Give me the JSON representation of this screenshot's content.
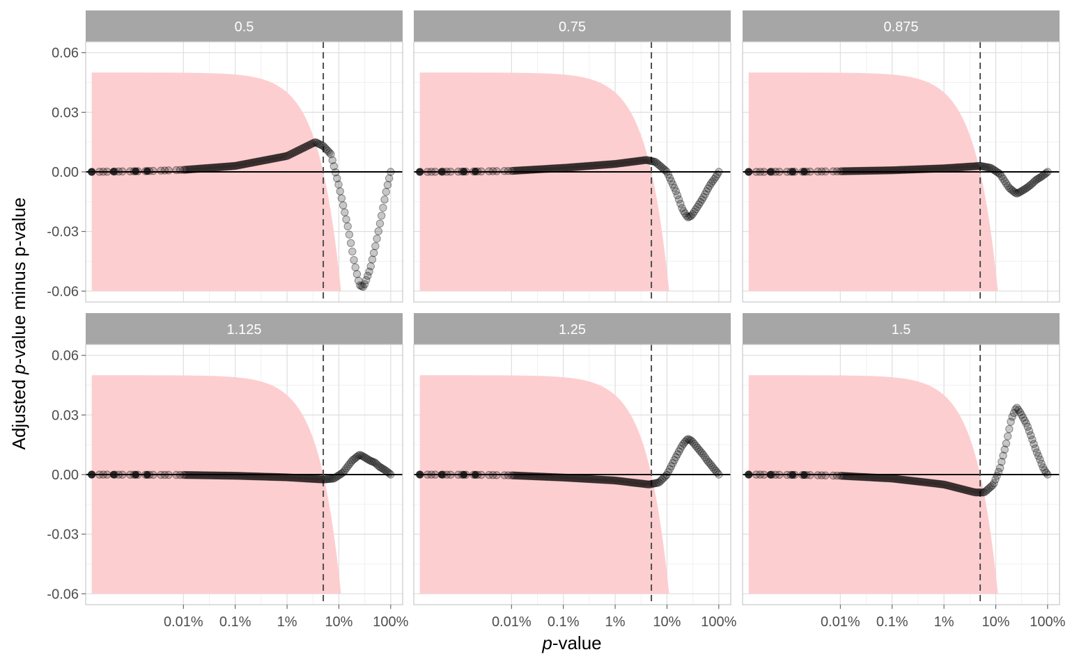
{
  "chart_data": {
    "type": "scatter",
    "facet_by": "exponent",
    "facets": [
      "0.5",
      "0.75",
      "0.875",
      "1.125",
      "1.25",
      "1.5"
    ],
    "xlabel_prefix": "p",
    "xlabel_suffix": "-value",
    "ylabel_prefix": "Adjusted ",
    "ylabel_italic": "p",
    "ylabel_suffix": "-value minus p-value",
    "x_scale": "log10",
    "x_ticks": [
      0.0001,
      0.001,
      0.01,
      0.1,
      1
    ],
    "x_tick_labels": [
      "0.01%",
      "0.1%",
      "1%",
      "10%",
      "100%"
    ],
    "xlim": [
      1.3e-06,
      1.7
    ],
    "y_ticks": [
      -0.06,
      -0.03,
      0.0,
      0.03,
      0.06
    ],
    "y_tick_labels": [
      "-0.06",
      "-0.03",
      "0.00",
      "0.03",
      "0.06"
    ],
    "ylim": [
      -0.0655,
      0.0655
    ],
    "reference_hline": 0,
    "reference_vline": 0.05,
    "ribbon": {
      "color": "#fdcbcd",
      "lower": -0.06,
      "upper_formula": "min(0.05, 0.05 - p + 0.0)",
      "x_from": 1.7e-06,
      "x_to": 0.11
    },
    "point_color": "#000000",
    "point_alpha": 0.22,
    "series": [
      {
        "name": "0.5",
        "x": [
          1.7e-06,
          2e-05,
          0.0001,
          0.001,
          0.01,
          0.035,
          0.05,
          0.07,
          0.1,
          0.15,
          0.2,
          0.25,
          0.3,
          0.4,
          0.5,
          0.6,
          0.7,
          0.8,
          0.9,
          1.0
        ],
        "y": [
          0.0,
          0.0004,
          0.001,
          0.003,
          0.008,
          0.015,
          0.013,
          0.009,
          -0.007,
          -0.028,
          -0.046,
          -0.057,
          -0.058,
          -0.049,
          -0.038,
          -0.028,
          -0.019,
          -0.011,
          -0.005,
          0.0
        ]
      },
      {
        "name": "0.75",
        "x": [
          1.7e-06,
          2e-05,
          0.0001,
          0.001,
          0.01,
          0.04,
          0.06,
          0.1,
          0.15,
          0.2,
          0.25,
          0.3,
          0.4,
          0.5,
          0.6,
          0.7,
          0.8,
          0.9,
          1.0
        ],
        "y": [
          0.0,
          0.0002,
          0.0005,
          0.002,
          0.004,
          0.006,
          0.005,
          0.0,
          -0.01,
          -0.019,
          -0.023,
          -0.022,
          -0.017,
          -0.013,
          -0.009,
          -0.006,
          -0.004,
          -0.002,
          0.0
        ]
      },
      {
        "name": "0.875",
        "x": [
          1.7e-06,
          2e-05,
          0.0001,
          0.001,
          0.01,
          0.05,
          0.08,
          0.12,
          0.18,
          0.25,
          0.3,
          0.4,
          0.5,
          0.6,
          0.7,
          0.8,
          0.9,
          1.0
        ],
        "y": [
          0.0,
          0.0001,
          0.0003,
          0.0008,
          0.0018,
          0.003,
          0.002,
          -0.001,
          -0.008,
          -0.011,
          -0.01,
          -0.008,
          -0.006,
          -0.004,
          -0.003,
          -0.002,
          -0.001,
          0.0
        ]
      },
      {
        "name": "1.125",
        "x": [
          1.7e-06,
          2e-05,
          0.0001,
          0.001,
          0.01,
          0.05,
          0.08,
          0.12,
          0.18,
          0.25,
          0.3,
          0.4,
          0.5,
          0.6,
          0.7,
          0.8,
          0.9,
          1.0
        ],
        "y": [
          0.0,
          -0.0001,
          -0.0002,
          -0.0006,
          -0.0014,
          -0.0025,
          -0.002,
          0.001,
          0.007,
          0.01,
          0.009,
          0.007,
          0.006,
          0.004,
          0.003,
          0.002,
          0.001,
          0.0
        ]
      },
      {
        "name": "1.25",
        "x": [
          1.7e-06,
          2e-05,
          0.0001,
          0.001,
          0.01,
          0.045,
          0.07,
          0.1,
          0.15,
          0.2,
          0.25,
          0.3,
          0.4,
          0.5,
          0.6,
          0.7,
          0.8,
          0.9,
          1.0
        ],
        "y": [
          0.0,
          -0.0001,
          -0.0004,
          -0.0015,
          -0.003,
          -0.005,
          -0.004,
          0.0,
          0.009,
          0.015,
          0.018,
          0.017,
          0.013,
          0.01,
          0.007,
          0.005,
          0.003,
          0.0015,
          0.0
        ]
      },
      {
        "name": "1.5",
        "x": [
          1.7e-06,
          2e-05,
          0.0001,
          0.001,
          0.01,
          0.04,
          0.06,
          0.09,
          0.12,
          0.16,
          0.2,
          0.25,
          0.3,
          0.4,
          0.5,
          0.6,
          0.7,
          0.8,
          0.9,
          1.0
        ],
        "y": [
          0.0,
          -0.0002,
          -0.0006,
          -0.002,
          -0.005,
          -0.009,
          -0.009,
          -0.005,
          0.003,
          0.016,
          0.028,
          0.034,
          0.031,
          0.025,
          0.018,
          0.012,
          0.008,
          0.004,
          0.0015,
          0.0
        ]
      }
    ]
  }
}
